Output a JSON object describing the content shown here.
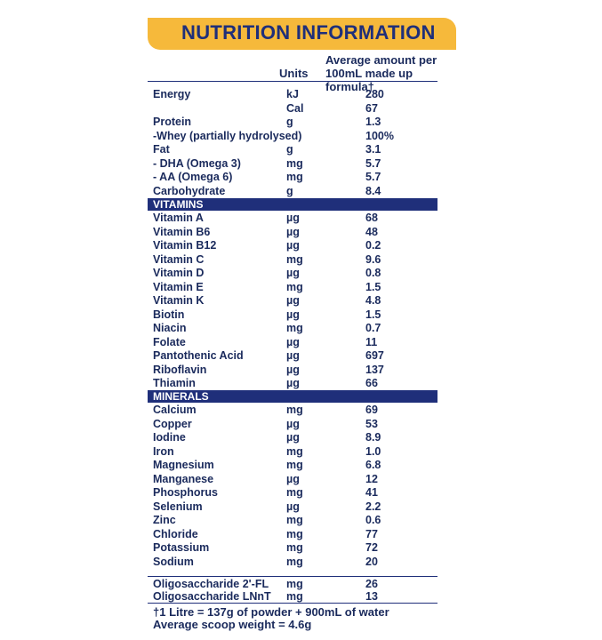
{
  "title": "NUTRITION INFORMATION",
  "header": {
    "units": "Units",
    "avg_line1": "Average amount per",
    "avg_line2": "100mL made up formula†"
  },
  "general": [
    {
      "name": "Energy",
      "unit": "kJ",
      "value": "280"
    },
    {
      "name": "",
      "unit": "Cal",
      "value": "67"
    },
    {
      "name": "Protein",
      "unit": "g",
      "value": "1.3"
    },
    {
      "name": "-Whey (partially hydrolysed)",
      "unit": "",
      "value": "100%"
    },
    {
      "name": "Fat",
      "unit": "g",
      "value": "3.1"
    },
    {
      "name": "- DHA (Omega 3)",
      "unit": "mg",
      "value": "5.7"
    },
    {
      "name": "- AA (Omega 6)",
      "unit": "mg",
      "value": "5.7"
    },
    {
      "name": "Carbohydrate",
      "unit": "g",
      "value": "8.4"
    }
  ],
  "vitamins_label": "VITAMINS",
  "vitamins": [
    {
      "name": "Vitamin A",
      "unit": "µg",
      "value": "68"
    },
    {
      "name": "Vitamin B6",
      "unit": "µg",
      "value": "48"
    },
    {
      "name": "Vitamin B12",
      "unit": "µg",
      "value": "0.2"
    },
    {
      "name": "Vitamin C",
      "unit": "mg",
      "value": "9.6"
    },
    {
      "name": "Vitamin D",
      "unit": "µg",
      "value": "0.8"
    },
    {
      "name": "Vitamin E",
      "unit": "mg",
      "value": "1.5"
    },
    {
      "name": "Vitamin K",
      "unit": "µg",
      "value": "4.8"
    },
    {
      "name": "Biotin",
      "unit": "µg",
      "value": "1.5"
    },
    {
      "name": "Niacin",
      "unit": "mg",
      "value": "0.7"
    },
    {
      "name": "Folate",
      "unit": "µg",
      "value": "11"
    },
    {
      "name": "Pantothenic Acid",
      "unit": "µg",
      "value": "697"
    },
    {
      "name": "Riboflavin",
      "unit": "µg",
      "value": "137"
    },
    {
      "name": "Thiamin",
      "unit": "µg",
      "value": "66"
    }
  ],
  "minerals_label": "MINERALS",
  "minerals": [
    {
      "name": "Calcium",
      "unit": "mg",
      "value": "69"
    },
    {
      "name": "Copper",
      "unit": "µg",
      "value": "53"
    },
    {
      "name": "Iodine",
      "unit": "µg",
      "value": "8.9"
    },
    {
      "name": "Iron",
      "unit": "mg",
      "value": "1.0"
    },
    {
      "name": "Magnesium",
      "unit": "mg",
      "value": "6.8"
    },
    {
      "name": "Manganese",
      "unit": "µg",
      "value": "12"
    },
    {
      "name": "Phosphorus",
      "unit": "mg",
      "value": "41"
    },
    {
      "name": "Selenium",
      "unit": "µg",
      "value": "2.2"
    },
    {
      "name": "Zinc",
      "unit": "mg",
      "value": "0.6"
    },
    {
      "name": "Chloride",
      "unit": "mg",
      "value": "77"
    },
    {
      "name": "Potassium",
      "unit": "mg",
      "value": "72"
    },
    {
      "name": "Sodium",
      "unit": "mg",
      "value": "20"
    }
  ],
  "oligos": [
    {
      "name": "Oligosaccharide 2'-FL",
      "unit": "mg",
      "value": "26"
    },
    {
      "name": "Oligosaccharide LNnT",
      "unit": "mg",
      "value": "13"
    }
  ],
  "footnote1": "†1 Litre = 137g of powder + 900mL of water",
  "footnote2": "Average scoop weight = 4.6g"
}
